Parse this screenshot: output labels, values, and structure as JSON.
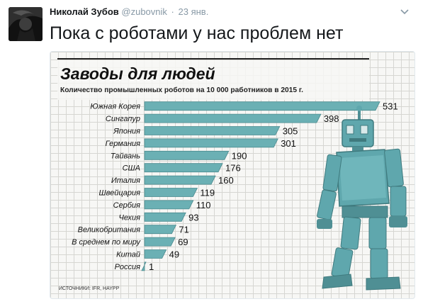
{
  "tweet": {
    "author_name": "Николай Зубов",
    "handle": "@zubovnik",
    "separator": "·",
    "time": "23 янв.",
    "text": "Пока с роботами у нас проблем нет"
  },
  "icons": {
    "menu": "chevron-down-icon",
    "robot": "robot-illustration"
  },
  "colors": {
    "bar": "#6bb0b4",
    "bar_shadow": "#4a8a8e",
    "robot": "#5fa7ad",
    "text": "#14171a",
    "muted": "#8899a6"
  },
  "chart_data": {
    "type": "bar",
    "orientation": "horizontal",
    "title": "Заводы для людей",
    "subtitle": "Количество промышленных роботов на 10 000 работников в 2015 г.",
    "categories": [
      "Южная Корея",
      "Сингапур",
      "Япония",
      "Германия",
      "Тайвань",
      "США",
      "Италия",
      "Швейцария",
      "Сербия",
      "Чехия",
      "Великобритания",
      "В среднем по миру",
      "Китай",
      "Россия"
    ],
    "values": [
      531,
      398,
      305,
      301,
      190,
      176,
      160,
      119,
      110,
      93,
      71,
      69,
      49,
      1
    ],
    "source": "ИСТОЧНИКИ: IFR, HAYPP",
    "xlim": [
      0,
      531
    ],
    "grid": true
  }
}
